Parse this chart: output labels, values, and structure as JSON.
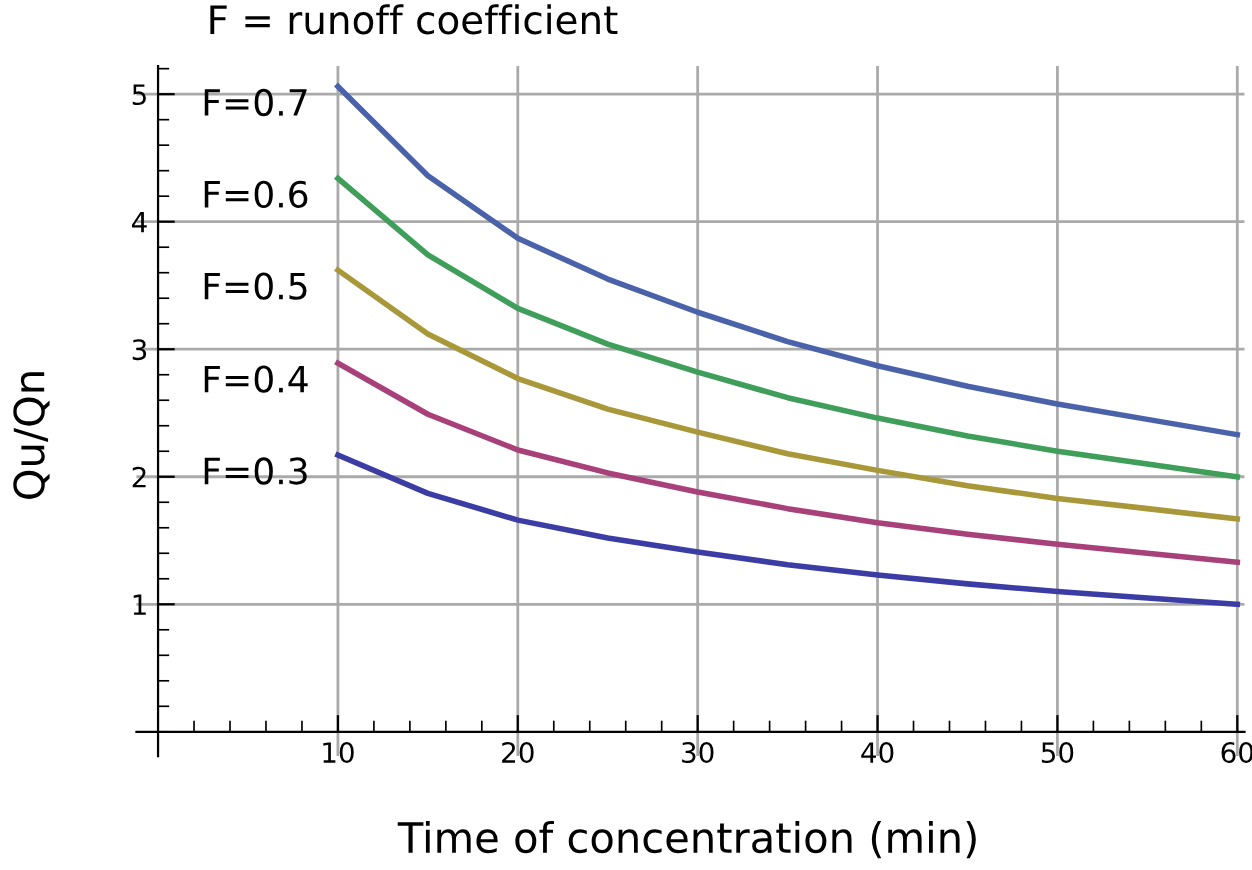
{
  "chart_data": {
    "type": "line",
    "title": "F = runoff coefficient",
    "xlabel": "Time of concentration (min)",
    "ylabel": "Qu/Qn",
    "x": [
      10,
      15,
      20,
      25,
      30,
      35,
      40,
      45,
      50,
      55,
      60
    ],
    "series": [
      {
        "name": "F=0.7",
        "color": "#4a62aa",
        "values": [
          5.06,
          4.36,
          3.87,
          3.55,
          3.29,
          3.06,
          2.87,
          2.71,
          2.57,
          2.45,
          2.33
        ]
      },
      {
        "name": "F=0.6",
        "color": "#3f9e5a",
        "values": [
          4.34,
          3.74,
          3.32,
          3.04,
          2.82,
          2.62,
          2.46,
          2.32,
          2.2,
          2.1,
          2.0
        ]
      },
      {
        "name": "F=0.5",
        "color": "#a8983a",
        "values": [
          3.62,
          3.12,
          2.77,
          2.53,
          2.35,
          2.18,
          2.05,
          1.93,
          1.83,
          1.75,
          1.67
        ]
      },
      {
        "name": "F=0.4",
        "color": "#a8407a",
        "values": [
          2.89,
          2.49,
          2.21,
          2.03,
          1.88,
          1.75,
          1.64,
          1.55,
          1.47,
          1.4,
          1.33
        ]
      },
      {
        "name": "F=0.3",
        "color": "#3c3ca5",
        "values": [
          2.17,
          1.87,
          1.66,
          1.52,
          1.41,
          1.31,
          1.23,
          1.16,
          1.1,
          1.05,
          1.0
        ]
      }
    ],
    "xlim": [
      -1.2,
      60.4
    ],
    "ylim": [
      -0.19,
      5.22
    ],
    "xticks": [
      10,
      20,
      30,
      40,
      50,
      60
    ],
    "yticks": [
      1,
      2,
      3,
      4,
      5
    ],
    "grid": true,
    "legend": false,
    "marker": "none",
    "line_style": "solid"
  }
}
